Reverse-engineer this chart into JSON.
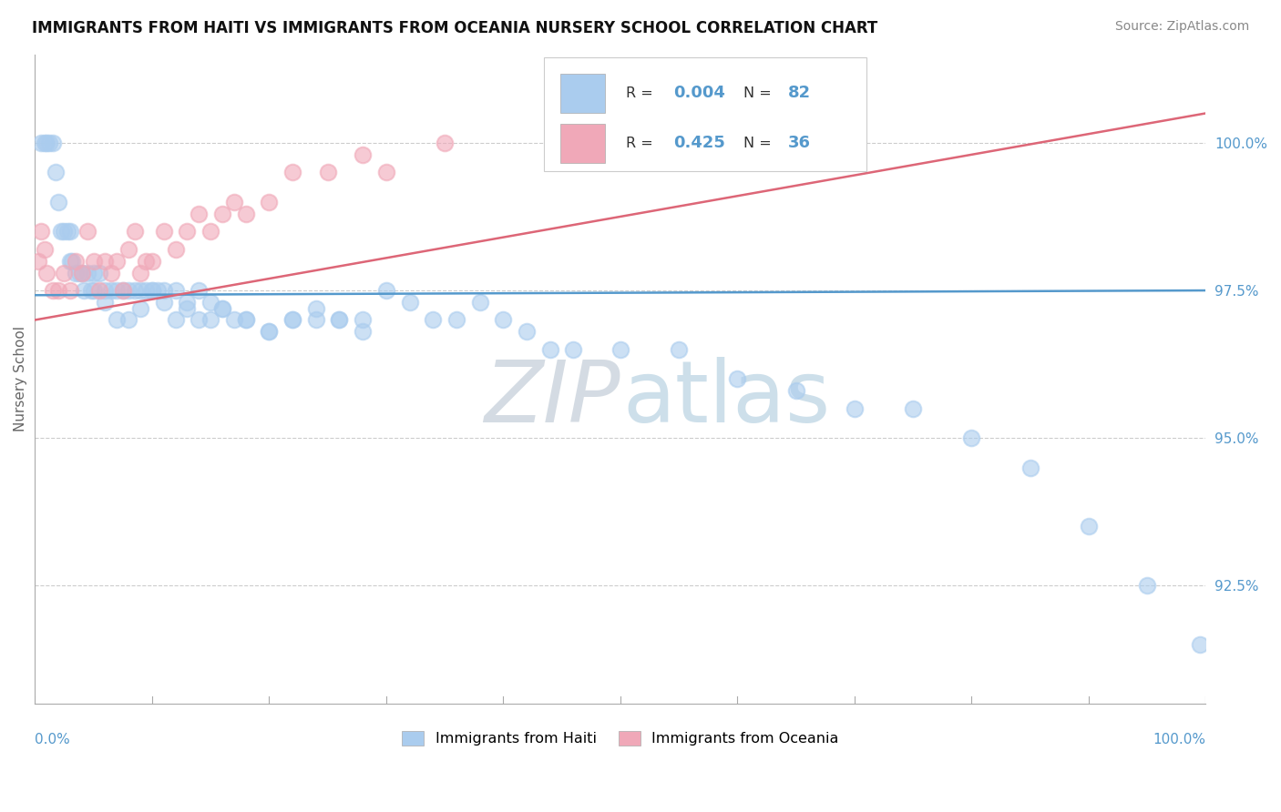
{
  "title": "IMMIGRANTS FROM HAITI VS IMMIGRANTS FROM OCEANIA NURSERY SCHOOL CORRELATION CHART",
  "source": "Source: ZipAtlas.com",
  "ylabel": "Nursery School",
  "legend_haiti": "Immigrants from Haiti",
  "legend_oceania": "Immigrants from Oceania",
  "r_haiti": 0.004,
  "n_haiti": 82,
  "r_oceania": 0.425,
  "n_oceania": 36,
  "haiti_color": "#aaccee",
  "oceania_color": "#f0a8b8",
  "haiti_line_color": "#5599cc",
  "oceania_line_color": "#dd6677",
  "xlim": [
    0,
    100
  ],
  "ylim": [
    90.5,
    101.5
  ],
  "yticks": [
    92.5,
    95.0,
    97.5,
    100.0
  ],
  "ytick_labels": [
    "92.5%",
    "95.0%",
    "97.5%",
    "100.0%"
  ],
  "haiti_x": [
    0.5,
    0.8,
    1.0,
    1.2,
    1.5,
    1.8,
    2.0,
    2.2,
    2.5,
    2.8,
    3.0,
    3.0,
    3.2,
    3.5,
    3.8,
    4.0,
    4.2,
    4.5,
    4.8,
    5.0,
    5.5,
    6.0,
    6.5,
    7.0,
    7.5,
    8.0,
    8.5,
    9.0,
    9.5,
    10.0,
    10.5,
    11.0,
    12.0,
    13.0,
    14.0,
    15.0,
    16.0,
    17.0,
    18.0,
    20.0,
    22.0,
    24.0,
    26.0,
    28.0,
    30.0,
    32.0,
    34.0,
    36.0,
    38.0,
    40.0,
    42.0,
    44.0,
    46.0,
    50.0,
    55.0,
    60.0,
    65.0,
    70.0,
    75.0,
    80.0,
    85.0,
    90.0,
    95.0,
    99.5,
    5.0,
    6.0,
    7.0,
    8.0,
    9.0,
    10.0,
    11.0,
    12.0,
    13.0,
    14.0,
    15.0,
    16.0,
    18.0,
    20.0,
    22.0,
    24.0,
    26.0,
    28.0
  ],
  "haiti_y": [
    100.0,
    100.0,
    100.0,
    100.0,
    100.0,
    99.5,
    99.0,
    98.5,
    98.5,
    98.5,
    98.5,
    98.0,
    98.0,
    97.8,
    97.8,
    97.8,
    97.5,
    97.8,
    97.5,
    97.8,
    97.8,
    97.5,
    97.5,
    97.5,
    97.5,
    97.5,
    97.5,
    97.5,
    97.5,
    97.5,
    97.5,
    97.5,
    97.5,
    97.3,
    97.0,
    97.0,
    97.2,
    97.0,
    97.0,
    96.8,
    97.0,
    97.0,
    97.0,
    97.0,
    97.5,
    97.3,
    97.0,
    97.0,
    97.3,
    97.0,
    96.8,
    96.5,
    96.5,
    96.5,
    96.5,
    96.0,
    95.8,
    95.5,
    95.5,
    95.0,
    94.5,
    93.5,
    92.5,
    91.5,
    97.5,
    97.3,
    97.0,
    97.0,
    97.2,
    97.5,
    97.3,
    97.0,
    97.2,
    97.5,
    97.3,
    97.2,
    97.0,
    96.8,
    97.0,
    97.2,
    97.0,
    96.8
  ],
  "oceania_x": [
    0.3,
    0.5,
    0.8,
    1.0,
    1.5,
    2.0,
    2.5,
    3.0,
    3.5,
    4.0,
    4.5,
    5.0,
    5.5,
    6.0,
    6.5,
    7.0,
    7.5,
    8.0,
    8.5,
    9.0,
    9.5,
    10.0,
    11.0,
    12.0,
    13.0,
    14.0,
    15.0,
    16.0,
    17.0,
    18.0,
    20.0,
    22.0,
    25.0,
    28.0,
    30.0,
    35.0
  ],
  "oceania_y": [
    98.0,
    98.5,
    98.2,
    97.8,
    97.5,
    97.5,
    97.8,
    97.5,
    98.0,
    97.8,
    98.5,
    98.0,
    97.5,
    98.0,
    97.8,
    98.0,
    97.5,
    98.2,
    98.5,
    97.8,
    98.0,
    98.0,
    98.5,
    98.2,
    98.5,
    98.8,
    98.5,
    98.8,
    99.0,
    98.8,
    99.0,
    99.5,
    99.5,
    99.8,
    99.5,
    100.0
  ],
  "haiti_trend_x": [
    0,
    100
  ],
  "haiti_trend_y": [
    97.42,
    97.5
  ],
  "oceania_trend_x": [
    0,
    100
  ],
  "oceania_trend_y": [
    97.0,
    100.5
  ]
}
